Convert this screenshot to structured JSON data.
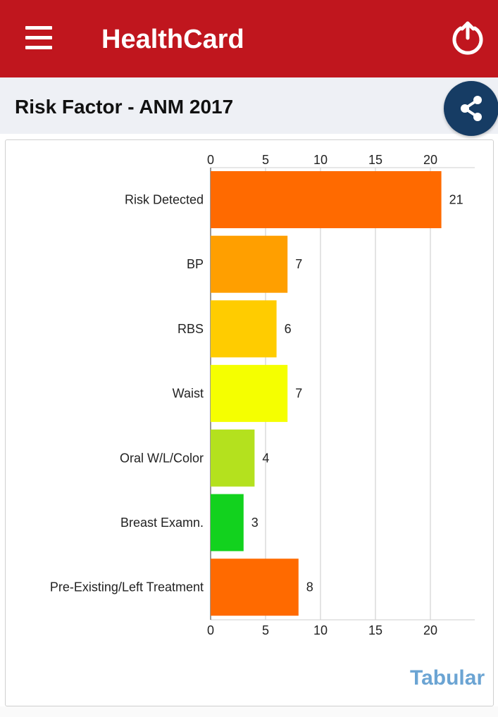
{
  "app": {
    "title": "HealthCard",
    "menu_icon": "hamburger-menu-icon",
    "power_icon": "power-icon",
    "share_icon": "share-icon",
    "colors": {
      "appbar": "#c0161e",
      "titlebar": "#eef0f5",
      "share": "#163c64",
      "link": "#6ba4d3"
    }
  },
  "page": {
    "title": "Risk Factor - ANM 2017"
  },
  "chart_data": {
    "type": "bar",
    "orientation": "horizontal",
    "categories": [
      "Risk Detected",
      "BP",
      "RBS",
      "Waist",
      "Oral W/L/Color",
      "Breast Examn.",
      "Pre-Existing/Left Treatment"
    ],
    "values": [
      21,
      7,
      6,
      7,
      4,
      3,
      8
    ],
    "colors": [
      "#ff6a00",
      "#ff9f00",
      "#ffcc00",
      "#f5ff00",
      "#b4e11e",
      "#12d21e",
      "#ff6a00"
    ],
    "xlim": [
      0,
      24
    ],
    "xticks": [
      0,
      5,
      10,
      15,
      20
    ],
    "grid": true,
    "axis_top": true,
    "axis_bottom": true
  },
  "footer": {
    "link_label": "Tabular"
  }
}
